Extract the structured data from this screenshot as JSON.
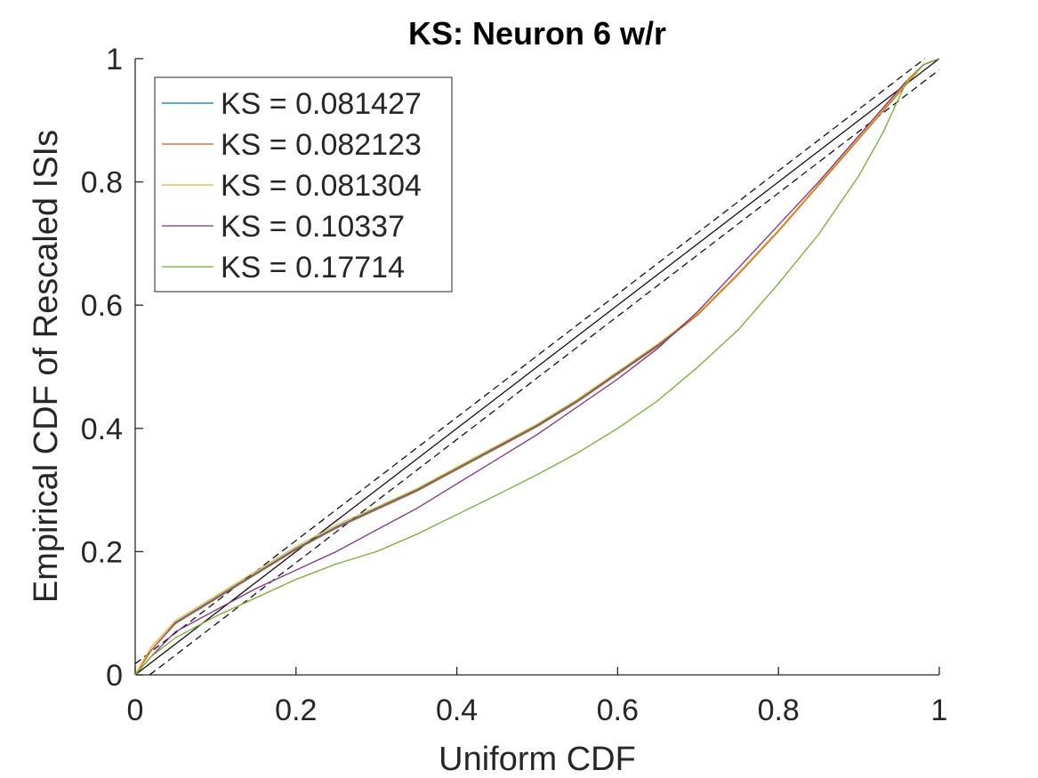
{
  "chart_data": {
    "type": "line",
    "title": "KS: Neuron 6 w/r",
    "xlabel": "Uniform CDF",
    "ylabel": "Empirical CDF of Rescaled ISIs",
    "xlim": [
      0,
      1
    ],
    "ylim": [
      0,
      1
    ],
    "xticks": [
      "0",
      "0.2",
      "0.4",
      "0.6",
      "0.8",
      "1"
    ],
    "yticks": [
      "0",
      "0.2",
      "0.4",
      "0.6",
      "0.8",
      "1"
    ],
    "grid": false,
    "legend_position": "top-left",
    "reference": {
      "diagonal": [
        [
          0,
          0
        ],
        [
          1,
          1
        ]
      ],
      "upper_bound": [
        [
          0,
          0.018
        ],
        [
          0.982,
          1
        ]
      ],
      "lower_bound": [
        [
          0.018,
          0
        ],
        [
          1,
          0.982
        ]
      ]
    },
    "series": [
      {
        "name": "KS = 0.081427",
        "color": "#0072BD",
        "x": [
          0,
          0.02,
          0.05,
          0.1,
          0.15,
          0.2,
          0.25,
          0.3,
          0.35,
          0.4,
          0.45,
          0.5,
          0.55,
          0.6,
          0.65,
          0.7,
          0.75,
          0.8,
          0.85,
          0.9,
          0.93,
          0.96,
          0.98,
          1
        ],
        "y": [
          0,
          0.04,
          0.085,
          0.125,
          0.165,
          0.205,
          0.24,
          0.27,
          0.3,
          0.335,
          0.37,
          0.405,
          0.445,
          0.49,
          0.535,
          0.585,
          0.65,
          0.72,
          0.795,
          0.87,
          0.915,
          0.96,
          0.99,
          1
        ]
      },
      {
        "name": "KS = 0.082123",
        "color": "#D95319",
        "x": [
          0,
          0.02,
          0.05,
          0.1,
          0.15,
          0.2,
          0.25,
          0.3,
          0.35,
          0.4,
          0.45,
          0.5,
          0.55,
          0.6,
          0.65,
          0.7,
          0.75,
          0.8,
          0.85,
          0.9,
          0.93,
          0.96,
          0.98,
          1
        ],
        "y": [
          0,
          0.04,
          0.083,
          0.123,
          0.163,
          0.203,
          0.238,
          0.268,
          0.298,
          0.333,
          0.368,
          0.403,
          0.443,
          0.488,
          0.533,
          0.585,
          0.65,
          0.72,
          0.795,
          0.87,
          0.915,
          0.96,
          0.99,
          1
        ]
      },
      {
        "name": "KS = 0.081304",
        "color": "#EDB120",
        "x": [
          0,
          0.02,
          0.05,
          0.1,
          0.15,
          0.2,
          0.25,
          0.3,
          0.35,
          0.4,
          0.45,
          0.5,
          0.55,
          0.6,
          0.65,
          0.7,
          0.75,
          0.8,
          0.85,
          0.9,
          0.93,
          0.96,
          0.98,
          1
        ],
        "y": [
          0,
          0.045,
          0.088,
          0.128,
          0.168,
          0.208,
          0.243,
          0.272,
          0.302,
          0.337,
          0.372,
          0.407,
          0.447,
          0.492,
          0.537,
          0.587,
          0.652,
          0.722,
          0.797,
          0.872,
          0.917,
          0.962,
          0.99,
          1
        ]
      },
      {
        "name": "KS = 0.10337",
        "color": "#7E2F8E",
        "x": [
          0,
          0.02,
          0.05,
          0.1,
          0.15,
          0.2,
          0.25,
          0.3,
          0.35,
          0.4,
          0.45,
          0.5,
          0.55,
          0.6,
          0.65,
          0.7,
          0.75,
          0.8,
          0.85,
          0.9,
          0.93,
          0.96,
          0.98,
          1
        ],
        "y": [
          0,
          0.03,
          0.07,
          0.105,
          0.14,
          0.17,
          0.2,
          0.235,
          0.27,
          0.31,
          0.35,
          0.39,
          0.435,
          0.48,
          0.53,
          0.59,
          0.66,
          0.73,
          0.8,
          0.875,
          0.92,
          0.965,
          0.99,
          1
        ]
      },
      {
        "name": "KS = 0.17714",
        "color": "#77AC30",
        "x": [
          0,
          0.02,
          0.05,
          0.1,
          0.15,
          0.2,
          0.25,
          0.3,
          0.35,
          0.4,
          0.45,
          0.5,
          0.55,
          0.6,
          0.65,
          0.7,
          0.75,
          0.8,
          0.85,
          0.9,
          0.93,
          0.96,
          0.98,
          1
        ],
        "y": [
          0,
          0.03,
          0.06,
          0.095,
          0.125,
          0.155,
          0.18,
          0.2,
          0.228,
          0.26,
          0.292,
          0.325,
          0.36,
          0.4,
          0.445,
          0.5,
          0.56,
          0.635,
          0.715,
          0.81,
          0.88,
          0.965,
          0.99,
          1
        ]
      }
    ]
  }
}
